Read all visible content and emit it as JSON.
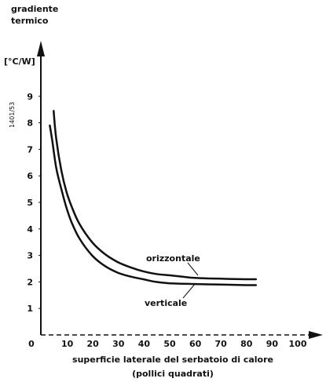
{
  "chart_data": {
    "type": "line",
    "ylabel_lines": [
      "gradiente",
      "termico"
    ],
    "yunit": "[°C/W]",
    "side_code": "1401/53",
    "xlabel_lines": [
      "superficie laterale del serbatoio di calore",
      "(pollici quadrati)"
    ],
    "xlim": [
      0,
      110
    ],
    "ylim": [
      0,
      10
    ],
    "xticks": [
      "0",
      "10",
      "20",
      "30",
      "40",
      "50",
      "60",
      "70",
      "80",
      "90",
      "100"
    ],
    "yticks": [
      "1",
      "2",
      "3",
      "4",
      "5",
      "6",
      "7",
      "8",
      "9"
    ],
    "grid": false,
    "series": [
      {
        "name": "orizzontale",
        "x": [
          5,
          6,
          8,
          10,
          12,
          15,
          20,
          25,
          30,
          35,
          40,
          45,
          50,
          55,
          60,
          70,
          80,
          84
        ],
        "y": [
          8.45,
          7.4,
          6.2,
          5.4,
          4.85,
          4.2,
          3.5,
          3.05,
          2.75,
          2.55,
          2.4,
          2.3,
          2.25,
          2.2,
          2.15,
          2.12,
          2.1,
          2.1
        ]
      },
      {
        "name": "verticale",
        "x": [
          3.5,
          4.5,
          6,
          8,
          10,
          12,
          15,
          20,
          25,
          30,
          35,
          40,
          45,
          50,
          60,
          70,
          80,
          84
        ],
        "y": [
          7.9,
          7.3,
          6.3,
          5.5,
          4.8,
          4.25,
          3.65,
          3.0,
          2.6,
          2.35,
          2.2,
          2.1,
          2.0,
          1.95,
          1.92,
          1.9,
          1.88,
          1.88
        ]
      }
    ]
  }
}
